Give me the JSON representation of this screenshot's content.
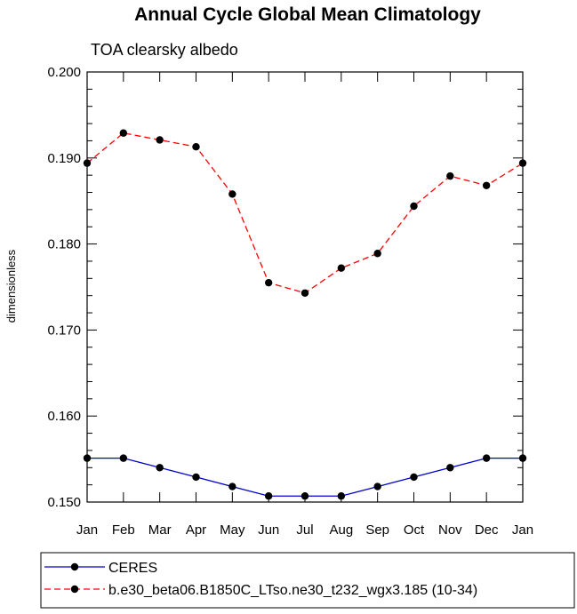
{
  "chart_data": {
    "type": "line",
    "title": "Annual Cycle Global Mean Climatology",
    "subtitle": "TOA clearsky albedo",
    "xlabel": "",
    "ylabel": "dimensionless",
    "categories": [
      "Jan",
      "Feb",
      "Mar",
      "Apr",
      "May",
      "Jun",
      "Jul",
      "Aug",
      "Sep",
      "Oct",
      "Nov",
      "Dec",
      "Jan"
    ],
    "ylim": [
      0.15,
      0.2
    ],
    "yticks": [
      "0.150",
      "0.160",
      "0.170",
      "0.180",
      "0.190",
      "0.200"
    ],
    "grid": false,
    "legend_position": "bottom",
    "series": [
      {
        "name": "CERES",
        "color": "#0000cc",
        "line_style": "solid",
        "marker": "filled-circle",
        "values": [
          0.1551,
          0.1551,
          0.154,
          0.1529,
          0.1518,
          0.1507,
          0.1507,
          0.1507,
          0.1518,
          0.1529,
          0.154,
          0.1551,
          0.1551
        ]
      },
      {
        "name": "b.e30_beta06.B1850C_LTso.ne30_t232_wgx3.185 (10-34)",
        "color": "#ff0000",
        "line_style": "dashed",
        "marker": "filled-circle",
        "values": [
          0.1894,
          0.1929,
          0.1921,
          0.1913,
          0.1858,
          0.1755,
          0.1743,
          0.1772,
          0.1789,
          0.1844,
          0.1879,
          0.1868,
          0.1894
        ]
      }
    ]
  }
}
